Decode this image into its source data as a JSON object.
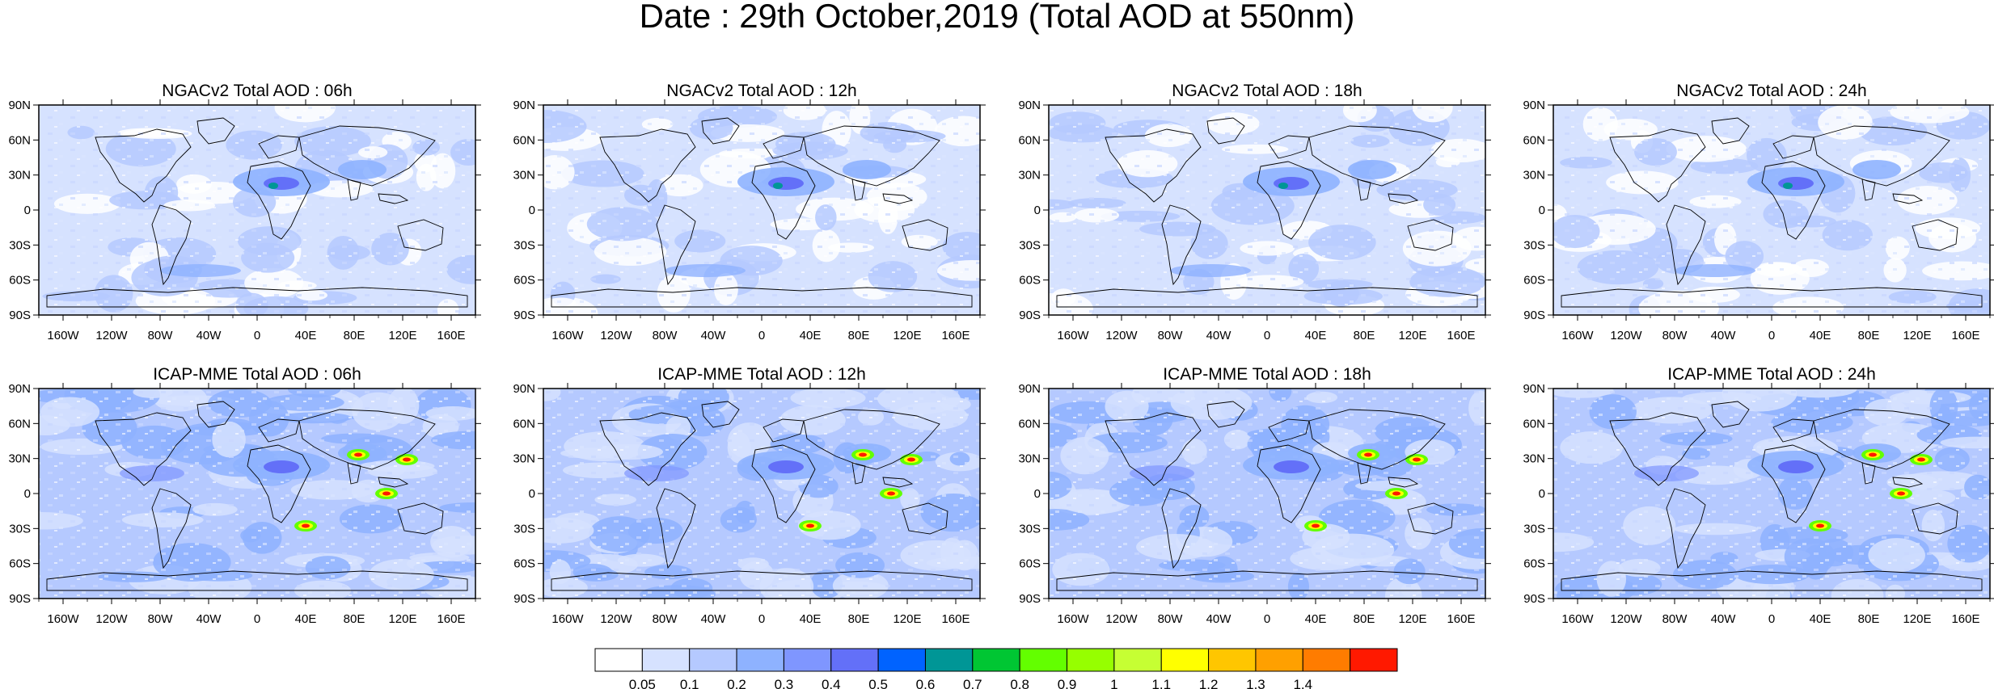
{
  "figure": {
    "title": "Date : 29th October,2019 (Total AOD at 550nm)"
  },
  "panels": [
    {
      "title": "NGACv2 Total AOD : 06h",
      "model": "NGACv2",
      "hour": "06h"
    },
    {
      "title": "NGACv2 Total AOD : 12h",
      "model": "NGACv2",
      "hour": "12h"
    },
    {
      "title": "NGACv2 Total AOD : 18h",
      "model": "NGACv2",
      "hour": "18h"
    },
    {
      "title": "NGACv2 Total AOD : 24h",
      "model": "NGACv2",
      "hour": "24h"
    },
    {
      "title": "ICAP-MME Total AOD : 06h",
      "model": "ICAP-MME",
      "hour": "06h"
    },
    {
      "title": "ICAP-MME Total AOD : 12h",
      "model": "ICAP-MME",
      "hour": "12h"
    },
    {
      "title": "ICAP-MME Total AOD : 18h",
      "model": "ICAP-MME",
      "hour": "18h"
    },
    {
      "title": "ICAP-MME Total AOD : 24h",
      "model": "ICAP-MME",
      "hour": "24h"
    }
  ],
  "axes": {
    "lat_labels": [
      "90N",
      "60N",
      "30N",
      "0",
      "30S",
      "60S",
      "90S"
    ],
    "lon_labels": [
      "160W",
      "120W",
      "80W",
      "40W",
      "0",
      "40E",
      "80E",
      "120E",
      "160E"
    ]
  },
  "colorbar": {
    "labels": [
      "0.05",
      "0.1",
      "0.2",
      "0.3",
      "0.4",
      "0.5",
      "0.6",
      "0.7",
      "0.8",
      "0.9",
      "1",
      "1.1",
      "1.2",
      "1.3",
      "1.4"
    ],
    "colors": [
      "#ffffff",
      "#d6e2ff",
      "#b5c9ff",
      "#8eb2ff",
      "#7f96ff",
      "#6370f8",
      "#0063ff",
      "#009696",
      "#00c633",
      "#63ff00",
      "#96ff00",
      "#c6ff33",
      "#ffff00",
      "#ffc600",
      "#ffa000",
      "#ff7c00",
      "#ff1900"
    ]
  }
}
